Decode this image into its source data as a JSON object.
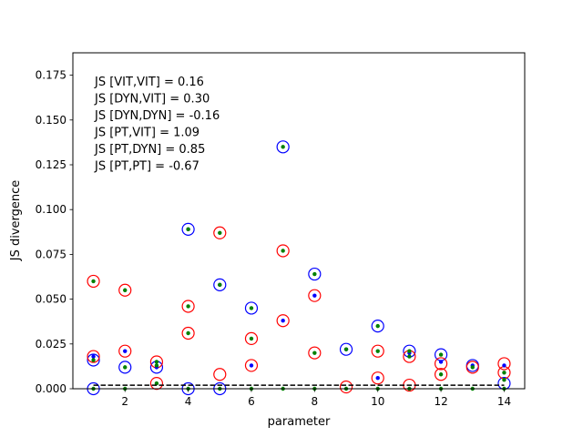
{
  "chart_data": {
    "type": "scatter",
    "title": "",
    "xlabel": "parameter",
    "ylabel": "JS divergence",
    "xlim": [
      0.35,
      14.65
    ],
    "ylim": [
      0.0,
      0.1875
    ],
    "x_ticks": [
      2,
      4,
      6,
      8,
      10,
      12,
      14
    ],
    "y_ticks": [
      0.0,
      0.025,
      0.05,
      0.075,
      0.1,
      0.125,
      0.15,
      0.175
    ],
    "x_tick_labels": [
      "2",
      "4",
      "6",
      "8",
      "10",
      "12",
      "14"
    ],
    "y_tick_labels": [
      "0.000",
      "0.025",
      "0.050",
      "0.075",
      "0.100",
      "0.125",
      "0.150",
      "0.175"
    ],
    "grid": false,
    "annotations": [
      "JS [VIT,VIT] = 0.16",
      "JS [DYN,VIT] = 0.30",
      "JS [DYN,DYN] = -0.16",
      "JS [PT,VIT] = 1.09",
      "JS [PT,DYN] = 0.85",
      "JS [PT,PT] = -0.67"
    ],
    "reference_line": {
      "y": 0.002,
      "style": "dashed",
      "color": "#000000"
    },
    "series": [
      {
        "marker": "open-circle",
        "color": "#0000ff",
        "points": [
          [
            1,
            0.016
          ],
          [
            1,
            0.0
          ],
          [
            2,
            0.012
          ],
          [
            3,
            0.012
          ],
          [
            4,
            0.089
          ],
          [
            4,
            0.0
          ],
          [
            5,
            0.058
          ],
          [
            5,
            0.0
          ],
          [
            6,
            0.045
          ],
          [
            7,
            0.135
          ],
          [
            8,
            0.064
          ],
          [
            9,
            0.022
          ],
          [
            10,
            0.035
          ],
          [
            11,
            0.021
          ],
          [
            12,
            0.019
          ],
          [
            13,
            0.013
          ],
          [
            14,
            0.003
          ]
        ]
      },
      {
        "marker": "open-circle",
        "color": "#ff0000",
        "points": [
          [
            1,
            0.06
          ],
          [
            1,
            0.018
          ],
          [
            2,
            0.055
          ],
          [
            2,
            0.021
          ],
          [
            3,
            0.015
          ],
          [
            3,
            0.003
          ],
          [
            4,
            0.046
          ],
          [
            4,
            0.031
          ],
          [
            5,
            0.087
          ],
          [
            5,
            0.008
          ],
          [
            6,
            0.028
          ],
          [
            6,
            0.013
          ],
          [
            7,
            0.077
          ],
          [
            7,
            0.038
          ],
          [
            8,
            0.052
          ],
          [
            8,
            0.02
          ],
          [
            9,
            0.001
          ],
          [
            10,
            0.021
          ],
          [
            10,
            0.006
          ],
          [
            11,
            0.018
          ],
          [
            11,
            0.002
          ],
          [
            12,
            0.014
          ],
          [
            12,
            0.008
          ],
          [
            13,
            0.012
          ],
          [
            14,
            0.014
          ],
          [
            14,
            0.009
          ]
        ]
      },
      {
        "marker": "dot",
        "color": "#0000ff",
        "points": [
          [
            1,
            0.018
          ],
          [
            2,
            0.021
          ],
          [
            3,
            0.012
          ],
          [
            4,
            0.089
          ],
          [
            5,
            0.058
          ],
          [
            6,
            0.013
          ],
          [
            7,
            0.038
          ],
          [
            8,
            0.052
          ],
          [
            9,
            0.022
          ],
          [
            10,
            0.006
          ],
          [
            11,
            0.02
          ],
          [
            12,
            0.015
          ],
          [
            13,
            0.013
          ],
          [
            14,
            0.013
          ]
        ]
      },
      {
        "marker": "dot",
        "color": "#008000",
        "points": [
          [
            1,
            0.06
          ],
          [
            1,
            0.016
          ],
          [
            1,
            0.0
          ],
          [
            2,
            0.055
          ],
          [
            2,
            0.012
          ],
          [
            2,
            0.0
          ],
          [
            3,
            0.015
          ],
          [
            3,
            0.013
          ],
          [
            3,
            0.003
          ],
          [
            4,
            0.089
          ],
          [
            4,
            0.046
          ],
          [
            4,
            0.031
          ],
          [
            4,
            0.0
          ],
          [
            5,
            0.087
          ],
          [
            5,
            0.058
          ],
          [
            5,
            0.0
          ],
          [
            6,
            0.045
          ],
          [
            6,
            0.028
          ],
          [
            6,
            0.0
          ],
          [
            7,
            0.135
          ],
          [
            7,
            0.077
          ],
          [
            7,
            0.0
          ],
          [
            8,
            0.064
          ],
          [
            8,
            0.02
          ],
          [
            8,
            0.0
          ],
          [
            9,
            0.022
          ],
          [
            9,
            0.0
          ],
          [
            10,
            0.035
          ],
          [
            10,
            0.021
          ],
          [
            10,
            0.0
          ],
          [
            11,
            0.021
          ],
          [
            11,
            0.018
          ],
          [
            11,
            0.0
          ],
          [
            12,
            0.019
          ],
          [
            12,
            0.008
          ],
          [
            12,
            0.0
          ],
          [
            13,
            0.012
          ],
          [
            13,
            0.0
          ],
          [
            14,
            0.009
          ],
          [
            14,
            0.005
          ],
          [
            14,
            0.0
          ]
        ]
      }
    ]
  }
}
